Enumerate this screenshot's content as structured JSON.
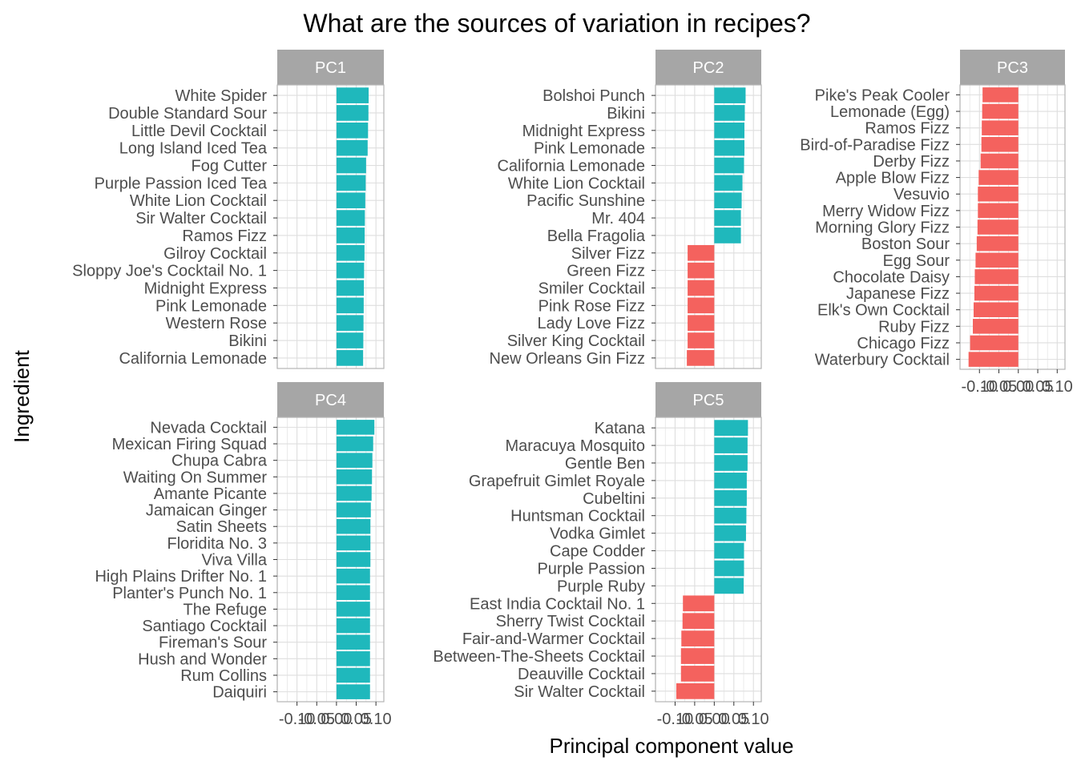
{
  "chart_data": {
    "type": "bar",
    "orientation": "horizontal",
    "title": "What are the sources of variation in recipes?",
    "xlabel": "Principal component value",
    "ylabel": "Ingredient",
    "xlim": [
      -0.15,
      0.12
    ],
    "x_ticks": [
      -0.1,
      -0.05,
      0.0,
      0.05,
      0.1
    ],
    "x_tick_labels": [
      "-0.10",
      "-0.05",
      "0.00",
      "0.05",
      "0.10"
    ],
    "grid": true,
    "legend": "none",
    "colors": {
      "positive": "#1FB8BC",
      "negative": "#F4625E",
      "strip": "#A6A6A6",
      "grid": "#DEDEDE",
      "panel_border": "#B3B3B3"
    },
    "panels": [
      {
        "name": "PC1",
        "categories": [
          "White Spider",
          "Double Standard Sour",
          "Little Devil Cocktail",
          "Long Island Iced Tea",
          "Fog Cutter",
          "Purple Passion Iced Tea",
          "White Lion Cocktail",
          "Sir Walter Cocktail",
          "Ramos Fizz",
          "Gilroy Cocktail",
          "Sloppy Joe's Cocktail No. 1",
          "Midnight Express",
          "Pink Lemonade",
          "Western Rose",
          "Bikini",
          "California Lemonade"
        ],
        "values": [
          0.0815,
          0.081,
          0.08,
          0.079,
          0.075,
          0.074,
          0.073,
          0.072,
          0.0715,
          0.071,
          0.07,
          0.0695,
          0.069,
          0.0685,
          0.068,
          0.0675
        ]
      },
      {
        "name": "PC2",
        "categories": [
          "Bolshoi Punch",
          "Bikini",
          "Midnight Express",
          "Pink Lemonade",
          "California Lemonade",
          "White Lion Cocktail",
          "Pacific Sunshine",
          "Mr. 404",
          "Bella Fragolia",
          "Silver Fizz",
          "Green Fizz",
          "Smiler Cocktail",
          "Pink Rose Fizz",
          "Lady Love Fizz",
          "Silver King Cocktail",
          "New Orleans Gin Fizz"
        ],
        "values": [
          0.08,
          0.078,
          0.077,
          0.077,
          0.076,
          0.072,
          0.07,
          0.068,
          0.068,
          -0.068,
          -0.068,
          -0.068,
          -0.068,
          -0.068,
          -0.068,
          -0.07
        ]
      },
      {
        "name": "PC3",
        "categories": [
          "Pike's Peak Cooler",
          "Lemonade (Egg)",
          "Ramos Fizz",
          "Bird-of-Paradise Fizz",
          "Derby Fizz",
          "Apple Blow Fizz",
          "Vesuvio",
          "Merry Widow Fizz",
          "Morning Glory Fizz",
          "Boston Sour",
          "Egg Sour",
          "Chocolate Daisy",
          "Japanese Fizz",
          "Elk's Own Cocktail",
          "Ruby Fizz",
          "Chicago Fizz",
          "Waterbury Cocktail"
        ],
        "values": [
          -0.092,
          -0.093,
          -0.094,
          -0.095,
          -0.097,
          -0.102,
          -0.104,
          -0.104,
          -0.105,
          -0.107,
          -0.11,
          -0.112,
          -0.113,
          -0.115,
          -0.117,
          -0.124,
          -0.128
        ]
      },
      {
        "name": "PC4",
        "categories": [
          "Nevada Cocktail",
          "Mexican Firing Squad",
          "Chupa Cabra",
          "Waiting On Summer",
          "Amante Picante",
          "Jamaican Ginger",
          "Satin Sheets",
          "Floridita No. 3",
          "Viva Villa",
          "High Plains Drifter No. 1",
          "Planter's Punch No. 1",
          "The Refuge",
          "Santiago Cocktail",
          "Fireman's Sour",
          "Hush and Wonder",
          "Rum Collins",
          "Daiquiri"
        ],
        "values": [
          0.096,
          0.093,
          0.091,
          0.09,
          0.089,
          0.087,
          0.086,
          0.086,
          0.086,
          0.085,
          0.085,
          0.085,
          0.085,
          0.085,
          0.085,
          0.085,
          0.085
        ]
      },
      {
        "name": "PC5",
        "categories": [
          "Katana",
          "Maracuya Mosquito",
          "Gentle Ben",
          "Grapefruit Gimlet Royale",
          "Cubeltini",
          "Huntsman Cocktail",
          "Vodka Gimlet",
          "Cape Codder",
          "Purple Passion",
          "Purple Ruby",
          "East India Cocktail No. 1",
          "Sherry Twist Cocktail",
          "Fair-and-Warmer Cocktail",
          "Between-The-Sheets Cocktail",
          "Deauville Cocktail",
          "Sir Walter Cocktail"
        ],
        "values": [
          0.086,
          0.085,
          0.085,
          0.083,
          0.083,
          0.082,
          0.081,
          0.076,
          0.076,
          0.075,
          -0.08,
          -0.081,
          -0.084,
          -0.085,
          -0.085,
          -0.097
        ]
      }
    ]
  }
}
